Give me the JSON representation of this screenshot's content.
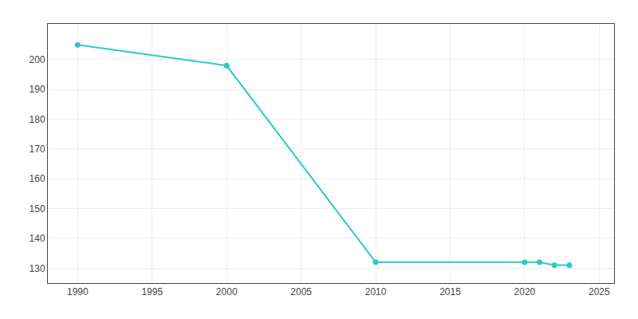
{
  "chart_data": {
    "type": "line",
    "x": [
      1990,
      2000,
      2010,
      2020,
      2021,
      2022,
      2023
    ],
    "values": [
      205,
      198,
      132,
      132,
      132,
      131,
      131
    ],
    "color": "#2ec8c8",
    "marker": "circle",
    "xlim": [
      1988,
      2026
    ],
    "ylim": [
      125,
      212
    ],
    "xticks": [
      1990,
      1995,
      2000,
      2005,
      2010,
      2015,
      2020,
      2025
    ],
    "yticks": [
      130,
      140,
      150,
      160,
      170,
      180,
      190,
      200
    ],
    "grid": true
  }
}
